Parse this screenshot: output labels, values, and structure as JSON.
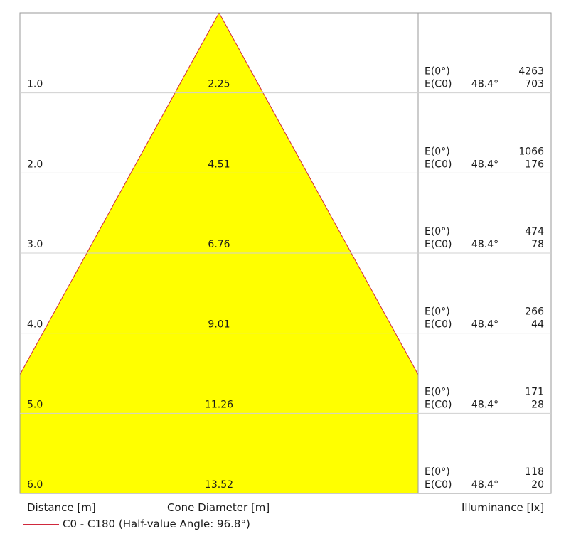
{
  "chart_data": {
    "type": "area",
    "title": "",
    "distance_unit_label": "Distance [m]",
    "diameter_unit_label": "Cone Diameter [m]",
    "illuminance_unit_label": "Illuminance [lx]",
    "half_angle_deg": 96.8,
    "rows": [
      {
        "distance": "1.0",
        "diameter": "2.25",
        "diameter_value": 2.25,
        "e0": "4263",
        "c0_angle": "48.4°",
        "c0": "703"
      },
      {
        "distance": "2.0",
        "diameter": "4.51",
        "diameter_value": 4.51,
        "e0": "1066",
        "c0_angle": "48.4°",
        "c0": "176"
      },
      {
        "distance": "3.0",
        "diameter": "6.76",
        "diameter_value": 6.76,
        "e0": "474",
        "c0_angle": "48.4°",
        "c0": "78"
      },
      {
        "distance": "4.0",
        "diameter": "9.01",
        "diameter_value": 9.01,
        "e0": "266",
        "c0_angle": "48.4°",
        "c0": "44"
      },
      {
        "distance": "5.0",
        "diameter": "11.26",
        "diameter_value": 11.26,
        "e0": "171",
        "c0_angle": "48.4°",
        "c0": "28"
      },
      {
        "distance": "6.0",
        "diameter": "13.52",
        "diameter_value": 13.52,
        "e0": "118",
        "c0_angle": "48.4°",
        "c0": "20"
      }
    ],
    "e0_label": "E(0°)",
    "c0_label": "E(C0)",
    "legend": [
      {
        "name": "C0 - C180 (Half-value Angle: 96.8°)",
        "color": "#d0283c"
      }
    ],
    "fill_color": "#ffff00",
    "grid": true
  }
}
